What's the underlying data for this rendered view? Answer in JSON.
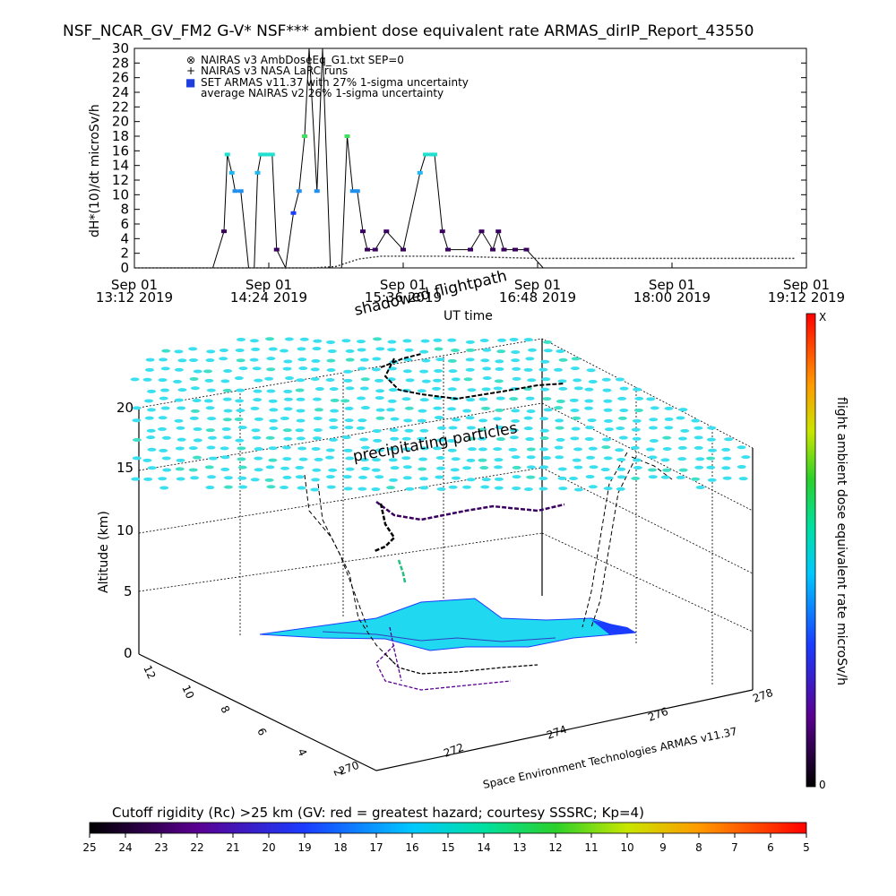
{
  "title": "NSF_NCAR_GV_FM2 G-V* NSF*** ambient dose equivalent rate ARMAS_dirIP_Report_43550",
  "top_chart": {
    "ylabel": "dH*(10)/dt microSv/h",
    "xlabel": "UT time",
    "y_ticks": [
      "0",
      "2",
      "4",
      "6",
      "8",
      "10",
      "12",
      "14",
      "16",
      "18",
      "20",
      "22",
      "24",
      "26",
      "28",
      "30"
    ],
    "x_ticks": [
      {
        "line1": "Sep 01",
        "line2": "13:12 2019"
      },
      {
        "line1": "Sep 01",
        "line2": "14:24 2019"
      },
      {
        "line1": "Sep 01",
        "line2": "15:36 2019"
      },
      {
        "line1": "Sep 01",
        "line2": "16:48 2019"
      },
      {
        "line1": "Sep 01",
        "line2": "18:00 2019"
      },
      {
        "line1": "Sep 01",
        "line2": "19:12 2019"
      }
    ],
    "legend": [
      {
        "symbol": "⊗",
        "text": "NAIRAS v3 AmbDoseEq_G1.txt SEP=0",
        "color": "#000000"
      },
      {
        "symbol": "+",
        "text": "NAIRAS v3 NASA LaRC runs",
        "color": "#000000"
      },
      {
        "symbol": "■",
        "text": "SET ARMAS v11.37 with 27% 1-sigma uncertainty",
        "color": "#1f3ee0"
      },
      {
        "symbol": "",
        "text": "average NAIRAS v2 26% 1-sigma uncertainty",
        "color": "#000000"
      }
    ]
  },
  "chart_data": {
    "type": "line",
    "x_unit": "UT hours (Sep 01 2019)",
    "xlim": [
      13.2,
      19.2
    ],
    "ylim": [
      0,
      30
    ],
    "series": [
      {
        "name": "SET ARMAS v11.37 with 27% 1-sigma uncertainty",
        "x": [
          13.2,
          13.9,
          14.0,
          14.03,
          14.07,
          14.1,
          14.15,
          14.22,
          14.27,
          14.3,
          14.33,
          14.36,
          14.39,
          14.43,
          14.47,
          14.55,
          14.62,
          14.67,
          14.72,
          14.76,
          14.83,
          14.88,
          14.95,
          15.05,
          15.1,
          15.15,
          15.19,
          15.24,
          15.28,
          15.35,
          15.45,
          15.6,
          15.75,
          15.8,
          15.85,
          15.88,
          15.95,
          16.0,
          16.2,
          16.3,
          16.4,
          16.45,
          16.5,
          16.6,
          16.7,
          16.85,
          17.5,
          18.5,
          19.2
        ],
        "y": [
          0,
          0,
          5,
          15.5,
          13,
          10.5,
          10.5,
          0,
          0,
          13,
          15.5,
          15.5,
          15.5,
          15.5,
          2.5,
          0,
          7.5,
          10.5,
          18,
          30,
          10.5,
          30,
          0,
          0,
          18,
          10.5,
          10.5,
          5,
          2.5,
          2.5,
          5,
          2.5,
          13,
          15.5,
          15.5,
          15.5,
          5,
          2.5,
          2.5,
          5,
          2.5,
          5,
          2.5,
          2.5,
          2.5,
          0,
          0,
          0,
          0
        ]
      },
      {
        "name": "NAIRAS v3 AmbDoseEq_G1.txt SEP=0",
        "x": [
          13.2,
          14.8,
          15.0,
          15.2,
          15.4,
          16.0,
          16.8,
          17.6,
          18.4,
          19.1
        ],
        "y": [
          0,
          0,
          0.2,
          1.2,
          1.6,
          1.6,
          1.3,
          1.3,
          1.3,
          1.3
        ]
      }
    ]
  },
  "map3d": {
    "label_shadowed": "shadowed flightpath",
    "label_precip": "precipitating particles",
    "z_label": "Altitude (km)",
    "z_ticks": [
      "0",
      "5",
      "10",
      "15",
      "20"
    ],
    "lon_ticks": [
      "270",
      "272",
      "274",
      "276",
      "278"
    ],
    "lat_ticks": [
      "2",
      "4",
      "6",
      "8",
      "10",
      "12"
    ],
    "credit": "Space Environment Technologies ARMAS v11.37"
  },
  "right_colorbar": {
    "label": "flight ambient dose equivalent rate microSv/h",
    "top": "X",
    "bottom": "0"
  },
  "bottom_colorbar": {
    "title": "Cutoff rigidity (Rc) >25 km (GV: red = greatest hazard; courtesy SSSRC; Kp=4)",
    "ticks": [
      "25",
      "24",
      "23",
      "22",
      "21",
      "20",
      "19",
      "18",
      "17",
      "16",
      "15",
      "14",
      "13",
      "12",
      "11",
      "10",
      "9",
      "8",
      "7",
      "6",
      "5"
    ]
  }
}
